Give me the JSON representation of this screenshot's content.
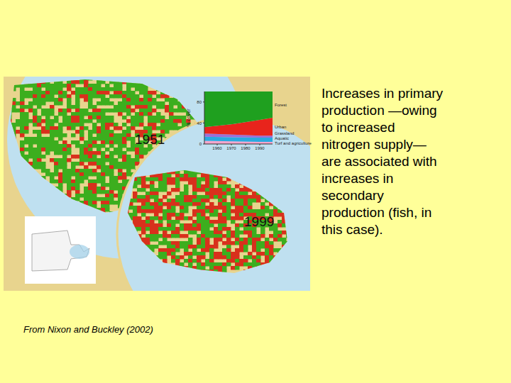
{
  "maps": [
    {
      "year_label": "1951"
    },
    {
      "year_label": "1999"
    }
  ],
  "text_lines": [
    "Increases in primary",
    "production —owing",
    "to increased",
    "nitrogen supply—",
    "are associated with",
    "increases in",
    "secondary",
    "production (fish, in",
    "this case)."
  ],
  "source": "From Nixon and Buckley (2002)",
  "chart_data": {
    "type": "area",
    "stacked": true,
    "y_label": "% cover",
    "x": [
      1951,
      1971,
      1990,
      1999
    ],
    "xlim": [
      1951,
      1999
    ],
    "xticks": [
      1960,
      1970,
      1980,
      1990
    ],
    "ylim": [
      0,
      100
    ],
    "yticks": [
      0,
      40,
      80
    ],
    "series": [
      {
        "name": "Forest",
        "color": "#1fa01f",
        "values": [
          68,
          62,
          54,
          50
        ]
      },
      {
        "name": "Urban",
        "color": "#e8241c",
        "values": [
          12,
          20,
          30,
          34
        ]
      },
      {
        "name": "Grassland",
        "color": "#9b6fd6",
        "values": [
          6,
          5,
          4,
          4
        ]
      },
      {
        "name": "Aquatic",
        "color": "#29a9e0",
        "values": [
          8,
          8,
          8,
          8
        ]
      },
      {
        "name": "Turf and agriculture",
        "color": "#f4a6cc",
        "values": [
          6,
          5,
          4,
          4
        ]
      }
    ]
  }
}
